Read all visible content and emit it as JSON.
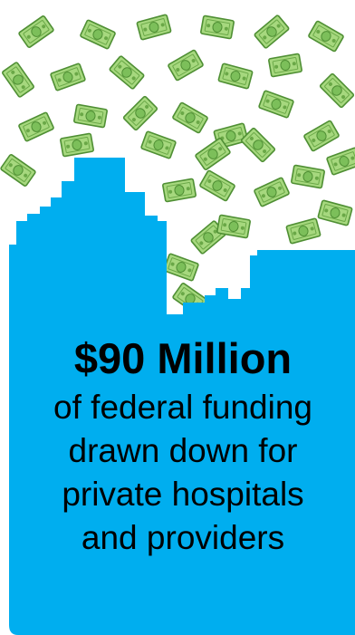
{
  "infographic": {
    "headline": "$90 Million",
    "lines": [
      "of federal funding",
      "drawn down for",
      "private hospitals",
      "and providers"
    ]
  },
  "colors": {
    "skyline": "#00aeef",
    "bill_light": "#a6d87e",
    "bill_mid": "#7cbf5a",
    "bill_dark": "#4f8f34",
    "text": "#000000",
    "background": "#ffffff"
  },
  "icons": {
    "decoration": "falling-money-icon",
    "building": "city-skyline"
  }
}
